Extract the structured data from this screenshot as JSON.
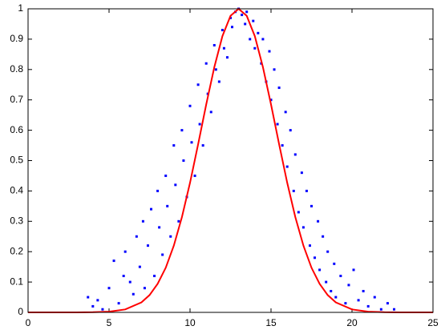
{
  "chart_data": {
    "type": "scatter",
    "xlim": [
      0,
      25
    ],
    "xticks": [
      0,
      5,
      10,
      15,
      20,
      25
    ],
    "ylim": [
      0,
      1
    ],
    "yticks": [
      0,
      0.1,
      0.2,
      0.3,
      0.4,
      0.5,
      0.6,
      0.7,
      0.8,
      0.9,
      1
    ],
    "grid": false,
    "series": [
      {
        "type": "scatter",
        "color": "#0000ff",
        "x": [
          3.7,
          4.0,
          4.3,
          4.6,
          5.0,
          5.3,
          5.6,
          5.9,
          6.0,
          6.3,
          6.5,
          6.7,
          6.9,
          7.1,
          7.2,
          7.4,
          7.6,
          7.8,
          8.0,
          8.1,
          8.3,
          8.5,
          8.6,
          8.8,
          9.0,
          9.1,
          9.3,
          9.5,
          9.6,
          9.8,
          10.0,
          10.1,
          10.3,
          10.5,
          10.6,
          10.8,
          11.0,
          11.1,
          11.3,
          11.5,
          11.6,
          11.8,
          12.0,
          12.1,
          12.3,
          12.5,
          12.6,
          12.8,
          13.0,
          13.2,
          13.4,
          13.5,
          13.7,
          13.9,
          14.0,
          14.2,
          14.4,
          14.5,
          14.7,
          14.9,
          15.0,
          15.2,
          15.4,
          15.5,
          15.7,
          15.9,
          16.0,
          16.2,
          16.4,
          16.5,
          16.7,
          16.9,
          17.0,
          17.2,
          17.4,
          17.5,
          17.7,
          17.9,
          18.0,
          18.2,
          18.4,
          18.5,
          18.7,
          18.9,
          19.0,
          19.3,
          19.6,
          19.8,
          20.1,
          20.4,
          20.7,
          21.0,
          21.4,
          21.8,
          22.2,
          22.6
        ],
        "values": [
          0.05,
          0.02,
          0.04,
          0.01,
          0.08,
          0.17,
          0.03,
          0.12,
          0.2,
          0.1,
          0.06,
          0.25,
          0.15,
          0.3,
          0.08,
          0.22,
          0.34,
          0.12,
          0.4,
          0.28,
          0.19,
          0.45,
          0.35,
          0.25,
          0.55,
          0.42,
          0.3,
          0.6,
          0.5,
          0.38,
          0.68,
          0.56,
          0.45,
          0.75,
          0.62,
          0.55,
          0.82,
          0.72,
          0.66,
          0.88,
          0.8,
          0.76,
          0.93,
          0.87,
          0.84,
          0.97,
          0.94,
          0.99,
          1.0,
          0.98,
          0.95,
          0.99,
          0.9,
          0.96,
          0.87,
          0.92,
          0.82,
          0.9,
          0.76,
          0.86,
          0.7,
          0.8,
          0.62,
          0.74,
          0.55,
          0.66,
          0.48,
          0.6,
          0.4,
          0.52,
          0.33,
          0.46,
          0.28,
          0.4,
          0.22,
          0.35,
          0.18,
          0.3,
          0.14,
          0.25,
          0.1,
          0.2,
          0.07,
          0.16,
          0.05,
          0.12,
          0.03,
          0.09,
          0.14,
          0.04,
          0.07,
          0.02,
          0.05,
          0.01,
          0.03,
          0.01
        ]
      },
      {
        "type": "line",
        "color": "#ff0000",
        "x": [
          0,
          1,
          2,
          3,
          4,
          5,
          6,
          7,
          7.5,
          8,
          8.5,
          9,
          9.5,
          10,
          10.5,
          11,
          11.5,
          12,
          12.5,
          13,
          13.5,
          14,
          14.5,
          15,
          15.5,
          16,
          16.5,
          17,
          17.5,
          18,
          18.5,
          19,
          20,
          21,
          22,
          23,
          24,
          25
        ],
        "values": [
          0,
          0,
          0,
          0.0001,
          0.0005,
          0.0024,
          0.0097,
          0.033,
          0.057,
          0.094,
          0.147,
          0.22,
          0.314,
          0.427,
          0.554,
          0.685,
          0.808,
          0.91,
          0.977,
          1,
          0.977,
          0.91,
          0.808,
          0.685,
          0.554,
          0.427,
          0.314,
          0.22,
          0.147,
          0.094,
          0.057,
          0.033,
          0.0097,
          0.0024,
          0.0005,
          0.0001,
          0,
          0
        ]
      }
    ]
  }
}
